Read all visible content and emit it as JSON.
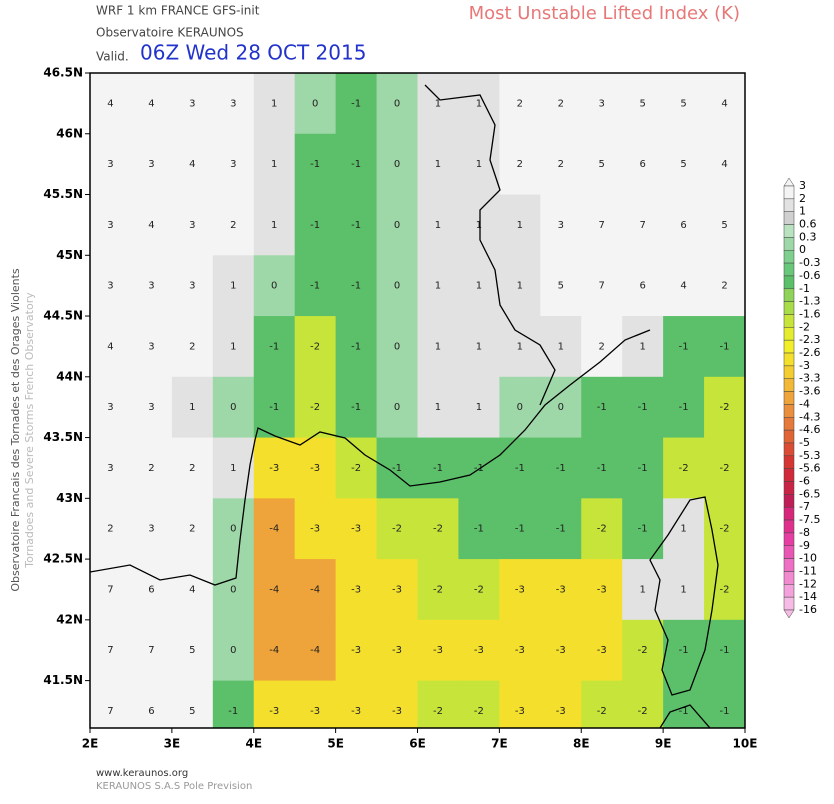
{
  "header": {
    "model": "WRF 1 km FRANCE  GFS-init",
    "organization": "Observatoire KERAUNOS",
    "valid_prefix": "Valid.",
    "valid_time": "06Z Wed 28 OCT 2015",
    "title": "Most Unstable Lifted Index (K)"
  },
  "side_text": [
    "Observatoire Francais des Tornades et des Orages Violents",
    "Tornadoes and Severe Storms French Observatory"
  ],
  "map": {
    "lon_range": [
      2,
      10
    ],
    "lat_range": [
      41.11,
      46.5
    ],
    "lon_ticks": [
      {
        "value": 2,
        "label": "2E"
      },
      {
        "value": 3,
        "label": "3E"
      },
      {
        "value": 4,
        "label": "4E"
      },
      {
        "value": 5,
        "label": "5E"
      },
      {
        "value": 6,
        "label": "6E"
      },
      {
        "value": 7,
        "label": "7E"
      },
      {
        "value": 8,
        "label": "8E"
      },
      {
        "value": 9,
        "label": "9E"
      },
      {
        "value": 10,
        "label": "10E"
      }
    ],
    "lat_ticks": [
      {
        "value": 46.5,
        "label": "46.5N"
      },
      {
        "value": 46,
        "label": "46N"
      },
      {
        "value": 45.5,
        "label": "45.5N"
      },
      {
        "value": 45,
        "label": "45N"
      },
      {
        "value": 44.5,
        "label": "44.5N"
      },
      {
        "value": 44,
        "label": "44N"
      },
      {
        "value": 43.5,
        "label": "43.5N"
      },
      {
        "value": 43,
        "label": "43N"
      },
      {
        "value": 42.5,
        "label": "42.5N"
      },
      {
        "value": 42,
        "label": "42N"
      },
      {
        "value": 41.5,
        "label": "41.5N"
      }
    ],
    "grid_lons": [
      2.25,
      2.75,
      3.25,
      3.75,
      4.25,
      4.75,
      5.25,
      5.75,
      6.25,
      6.75,
      7.25,
      7.75,
      8.25,
      8.75,
      9.25,
      9.75
    ],
    "grid_lats": [
      46.25,
      45.75,
      45.25,
      44.75,
      44.25,
      43.75,
      43.25,
      42.75,
      42.25,
      41.75,
      41.25
    ],
    "values": [
      [
        4,
        4,
        3,
        3,
        1,
        0,
        -1,
        0,
        1,
        1,
        2,
        2,
        3,
        5,
        5,
        4
      ],
      [
        3,
        3,
        4,
        3,
        1,
        -1,
        -1,
        0,
        1,
        1,
        2,
        2,
        5,
        6,
        5,
        4
      ],
      [
        3,
        4,
        3,
        2,
        1,
        -1,
        -1,
        0,
        1,
        1,
        1,
        3,
        7,
        7,
        6,
        5
      ],
      [
        3,
        3,
        3,
        1,
        0,
        -1,
        -1,
        0,
        1,
        1,
        1,
        5,
        7,
        6,
        4,
        2
      ],
      [
        4,
        3,
        2,
        1,
        -1,
        -2,
        -1,
        0,
        1,
        1,
        1,
        1,
        2,
        1,
        -1,
        -1
      ],
      [
        3,
        3,
        1,
        0,
        -1,
        -2,
        -1,
        0,
        1,
        1,
        0,
        0,
        -1,
        -1,
        -1,
        -2
      ],
      [
        3,
        2,
        2,
        1,
        -3,
        -3,
        -2,
        -1,
        -1,
        -1,
        -1,
        -1,
        -1,
        -1,
        -2,
        -2
      ],
      [
        2,
        3,
        2,
        0,
        -4,
        -3,
        -3,
        -2,
        -2,
        -1,
        -1,
        -1,
        -2,
        -1,
        1,
        -2
      ],
      [
        7,
        6,
        4,
        0,
        -4,
        -4,
        -3,
        -3,
        -2,
        -2,
        -3,
        -3,
        -3,
        1,
        1,
        -2
      ],
      [
        7,
        7,
        5,
        0,
        -4,
        -4,
        -3,
        -3,
        -3,
        -3,
        -3,
        -3,
        -3,
        -2,
        -1,
        -1
      ],
      [
        7,
        6,
        5,
        -1,
        -3,
        -3,
        -3,
        -3,
        -2,
        -2,
        -3,
        -3,
        -2,
        -2,
        -1,
        -1
      ]
    ]
  },
  "colorbar": {
    "levels": [
      3,
      2,
      1,
      0.6,
      0.3,
      0,
      -0.3,
      -0.6,
      -1,
      -1.3,
      -1.6,
      -2,
      -2.3,
      -2.6,
      -3,
      -3.3,
      -3.6,
      -4,
      -4.3,
      -4.6,
      -5,
      -5.3,
      -5.6,
      -6,
      -6.5,
      -7,
      -7.5,
      -8,
      -9,
      -10,
      -11,
      -12,
      -14,
      -16
    ],
    "colors": [
      "#f4f4f4",
      "#e2e2e2",
      "#d0d0d0",
      "#b9e3c0",
      "#9fd8a8",
      "#7fcf8e",
      "#69c77c",
      "#5cc06a",
      "#8fd35a",
      "#a8dc48",
      "#c6e43a",
      "#e3ec2e",
      "#f2ef2a",
      "#f4e02c",
      "#f4cd30",
      "#f2b838",
      "#eea43a",
      "#ea903c",
      "#e57a3a",
      "#e06436",
      "#db4c34",
      "#d63632",
      "#d12a3a",
      "#c92446",
      "#c01e56",
      "#d8267a",
      "#e0308e",
      "#e63ea2",
      "#ea56b4",
      "#ee70c4",
      "#f28ad0",
      "#f4a2dc",
      "#f6bce6"
    ]
  },
  "footer": [
    "www.keraunos.org",
    "KERAUNOS S.A.S Pole Prevision"
  ]
}
